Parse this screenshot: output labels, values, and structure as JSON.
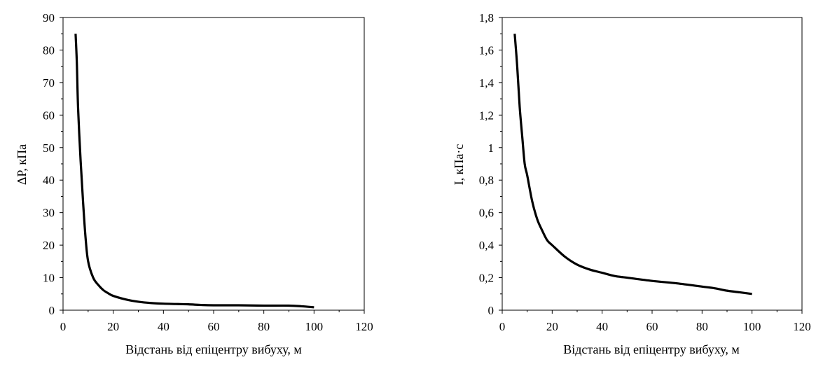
{
  "chart_data": [
    {
      "type": "line",
      "title": "",
      "xlabel": "Відстань від епіцентру вибуху, м",
      "ylabel": "ΔP, кПа",
      "xlim": [
        0,
        120
      ],
      "ylim": [
        0,
        90
      ],
      "x_ticks": [
        0,
        20,
        40,
        60,
        80,
        100,
        120
      ],
      "y_ticks": [
        0,
        10,
        20,
        30,
        40,
        50,
        60,
        70,
        80,
        90
      ],
      "x_tick_labels": [
        "0",
        "20",
        "40",
        "60",
        "80",
        "100",
        "120"
      ],
      "y_tick_labels": [
        "0",
        "10",
        "20",
        "30",
        "40",
        "50",
        "60",
        "70",
        "80",
        "90"
      ],
      "grid": false,
      "series": [
        {
          "color": "#000000",
          "x": [
            5,
            5.5,
            6,
            7,
            8,
            9,
            10,
            12,
            14,
            16,
            18,
            20,
            25,
            30,
            35,
            40,
            45,
            50,
            55,
            60,
            70,
            80,
            90,
            95,
            100
          ],
          "y": [
            85,
            76,
            62,
            46,
            33,
            22,
            15,
            10,
            7.8,
            6.2,
            5.2,
            4.4,
            3.3,
            2.6,
            2.2,
            2.0,
            1.9,
            1.8,
            1.6,
            1.5,
            1.5,
            1.4,
            1.4,
            1.2,
            0.9
          ]
        }
      ]
    },
    {
      "type": "line",
      "title": "",
      "xlabel": "Відстань від епіцентру вибуху, м",
      "ylabel": "I, кПа·с",
      "xlim": [
        0,
        120
      ],
      "ylim": [
        0,
        1.8
      ],
      "x_ticks": [
        0,
        20,
        40,
        60,
        80,
        100,
        120
      ],
      "y_ticks": [
        0,
        0.2,
        0.4,
        0.6,
        0.8,
        1.0,
        1.2,
        1.4,
        1.6,
        1.8
      ],
      "x_tick_labels": [
        "0",
        "20",
        "40",
        "60",
        "80",
        "100",
        "120"
      ],
      "y_tick_labels": [
        "0",
        "0,2",
        "0,4",
        "0,6",
        "0,8",
        "1",
        "1,2",
        "1,4",
        "1,6",
        "1,8"
      ],
      "grid": false,
      "series": [
        {
          "color": "#000000",
          "x": [
            5,
            6,
            7,
            8,
            9,
            10,
            12,
            14,
            16,
            18,
            20,
            25,
            30,
            35,
            40,
            45,
            50,
            60,
            70,
            80,
            85,
            90,
            95,
            100
          ],
          "y": [
            1.7,
            1.5,
            1.25,
            1.07,
            0.9,
            0.83,
            0.67,
            0.56,
            0.49,
            0.43,
            0.4,
            0.33,
            0.28,
            0.25,
            0.23,
            0.21,
            0.2,
            0.18,
            0.165,
            0.145,
            0.135,
            0.12,
            0.11,
            0.1
          ]
        }
      ]
    }
  ]
}
